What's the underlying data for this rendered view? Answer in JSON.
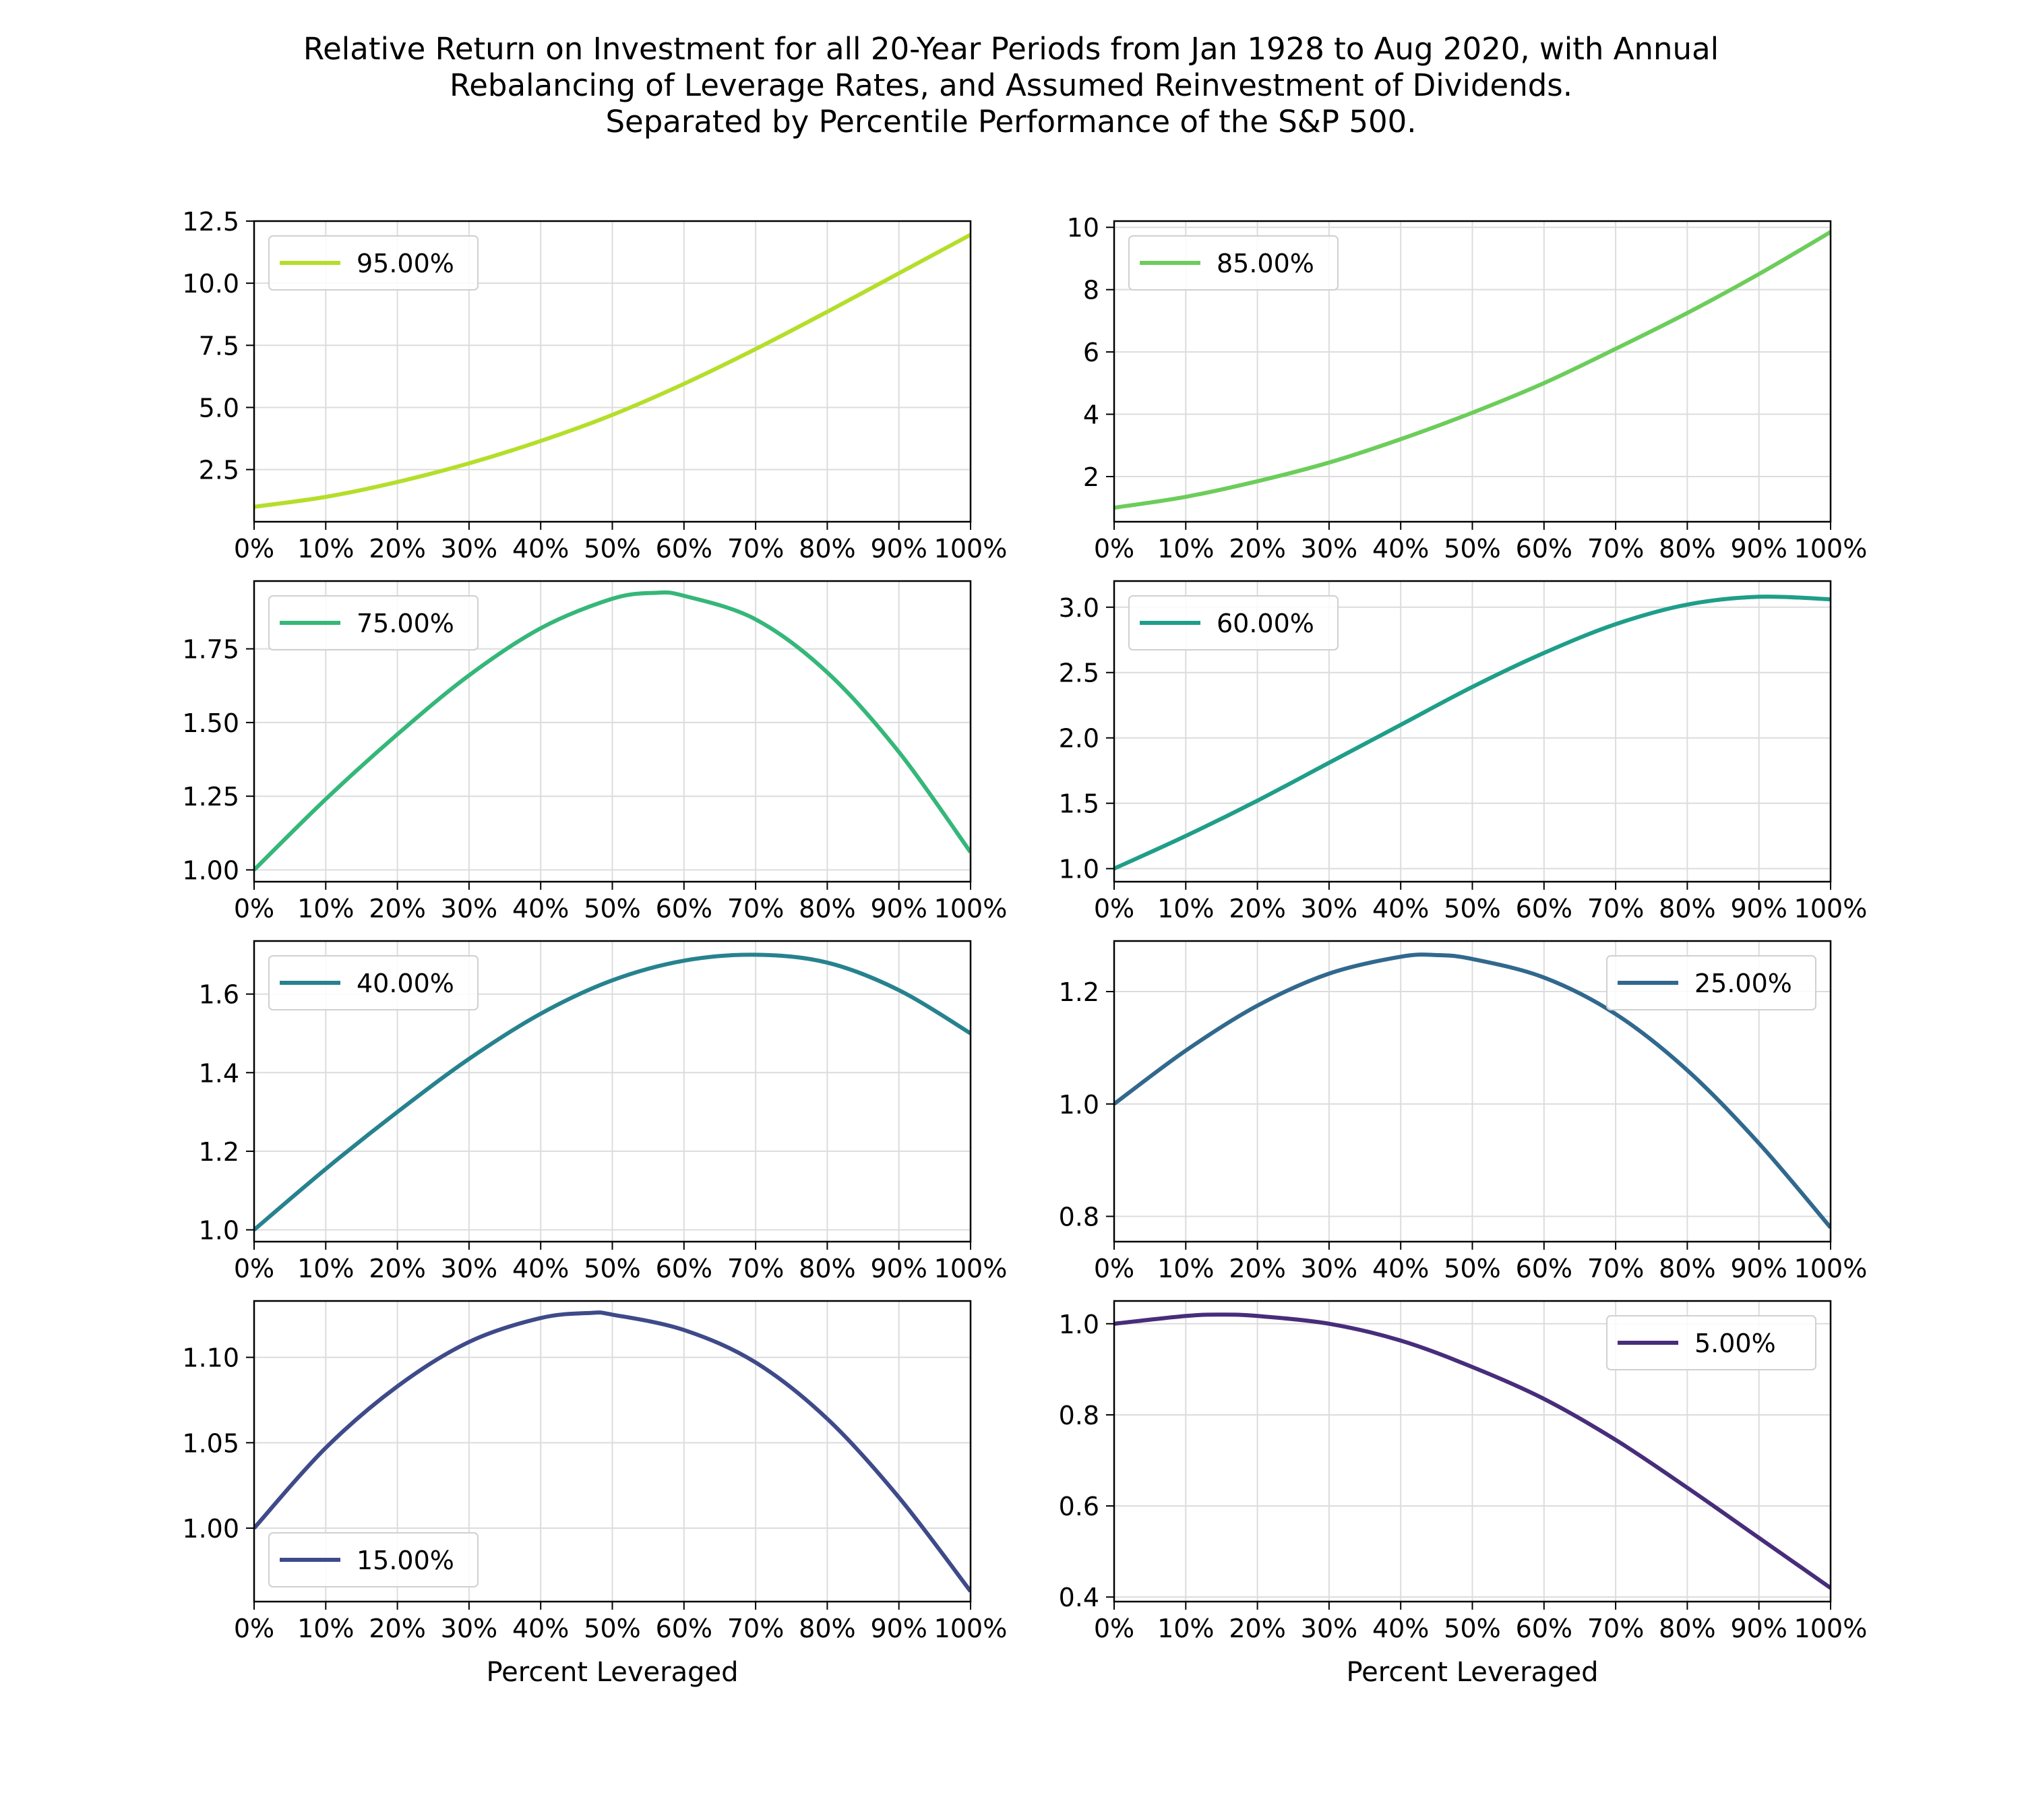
{
  "figure": {
    "title_lines": [
      "Relative Return on Investment for all 20-Year Periods from Jan 1928 to Aug 2020, with Annual",
      "Rebalancing of Leverage Rates, and Assumed Reinvestment of Dividends.",
      "Separated by Percentile Performance of the S&P 500."
    ]
  },
  "chart_data": [
    {
      "type": "line",
      "legend_label": "95.00%",
      "legend_position": "upper-left",
      "color": "#b5de2b",
      "x": [
        0,
        10,
        20,
        30,
        40,
        50,
        60,
        70,
        80,
        90,
        100
      ],
      "y": [
        1.0,
        1.4,
        2.0,
        2.75,
        3.65,
        4.7,
        5.95,
        7.35,
        8.85,
        10.4,
        11.95
      ],
      "xlim": [
        0,
        100
      ],
      "ylim": [
        0.4,
        12.5
      ],
      "yticks": [
        2.5,
        5.0,
        7.5,
        10.0,
        12.5
      ],
      "ytick_labels": [
        "2.5",
        "5.0",
        "7.5",
        "10.0",
        "12.5"
      ],
      "xticks": [
        0,
        10,
        20,
        30,
        40,
        50,
        60,
        70,
        80,
        90,
        100
      ],
      "xtick_labels": [
        "0%",
        "10%",
        "20%",
        "30%",
        "40%",
        "50%",
        "60%",
        "70%",
        "80%",
        "90%",
        "100%"
      ],
      "xlabel": "",
      "grid": true
    },
    {
      "type": "line",
      "legend_label": "85.00%",
      "legend_position": "upper-left",
      "color": "#6ccd5a",
      "x": [
        0,
        10,
        20,
        30,
        40,
        50,
        60,
        70,
        80,
        90,
        100
      ],
      "y": [
        1.0,
        1.35,
        1.85,
        2.45,
        3.2,
        4.05,
        5.0,
        6.1,
        7.25,
        8.5,
        9.85
      ],
      "xlim": [
        0,
        100
      ],
      "ylim": [
        0.55,
        10.2
      ],
      "yticks": [
        2,
        4,
        6,
        8,
        10
      ],
      "ytick_labels": [
        "2",
        "4",
        "6",
        "8",
        "10"
      ],
      "xticks": [
        0,
        10,
        20,
        30,
        40,
        50,
        60,
        70,
        80,
        90,
        100
      ],
      "xtick_labels": [
        "0%",
        "10%",
        "20%",
        "30%",
        "40%",
        "50%",
        "60%",
        "70%",
        "80%",
        "90%",
        "100%"
      ],
      "xlabel": "",
      "grid": true
    },
    {
      "type": "line",
      "legend_label": "75.00%",
      "legend_position": "upper-left",
      "color": "#35b779",
      "x": [
        0,
        10,
        20,
        30,
        40,
        50,
        56,
        60,
        70,
        80,
        90,
        100
      ],
      "y": [
        1.0,
        1.24,
        1.46,
        1.66,
        1.82,
        1.92,
        1.94,
        1.93,
        1.85,
        1.67,
        1.4,
        1.06
      ],
      "xlim": [
        0,
        100
      ],
      "ylim": [
        0.96,
        1.98
      ],
      "yticks": [
        1.0,
        1.25,
        1.5,
        1.75
      ],
      "ytick_labels": [
        "1.00",
        "1.25",
        "1.50",
        "1.75"
      ],
      "xticks": [
        0,
        10,
        20,
        30,
        40,
        50,
        60,
        70,
        80,
        90,
        100
      ],
      "xtick_labels": [
        "0%",
        "10%",
        "20%",
        "30%",
        "40%",
        "50%",
        "60%",
        "70%",
        "80%",
        "90%",
        "100%"
      ],
      "xlabel": "",
      "grid": true
    },
    {
      "type": "line",
      "legend_label": "60.00%",
      "legend_position": "upper-left",
      "color": "#1f9e89",
      "x": [
        0,
        10,
        20,
        30,
        40,
        50,
        60,
        70,
        80,
        90,
        100
      ],
      "y": [
        1.0,
        1.25,
        1.52,
        1.81,
        2.1,
        2.39,
        2.65,
        2.87,
        3.02,
        3.08,
        3.06
      ],
      "xlim": [
        0,
        100
      ],
      "ylim": [
        0.9,
        3.2
      ],
      "yticks": [
        1.0,
        1.5,
        2.0,
        2.5,
        3.0
      ],
      "ytick_labels": [
        "1.0",
        "1.5",
        "2.0",
        "2.5",
        "3.0"
      ],
      "xticks": [
        0,
        10,
        20,
        30,
        40,
        50,
        60,
        70,
        80,
        90,
        100
      ],
      "xtick_labels": [
        "0%",
        "10%",
        "20%",
        "30%",
        "40%",
        "50%",
        "60%",
        "70%",
        "80%",
        "90%",
        "100%"
      ],
      "xlabel": "",
      "grid": true
    },
    {
      "type": "line",
      "legend_label": "40.00%",
      "legend_position": "upper-left",
      "color": "#26828e",
      "x": [
        0,
        10,
        20,
        30,
        40,
        50,
        60,
        70,
        80,
        90,
        100
      ],
      "y": [
        1.0,
        1.155,
        1.3,
        1.435,
        1.55,
        1.635,
        1.685,
        1.7,
        1.68,
        1.61,
        1.5
      ],
      "xlim": [
        0,
        100
      ],
      "ylim": [
        0.97,
        1.735
      ],
      "yticks": [
        1.0,
        1.2,
        1.4,
        1.6
      ],
      "ytick_labels": [
        "1.0",
        "1.2",
        "1.4",
        "1.6"
      ],
      "xticks": [
        0,
        10,
        20,
        30,
        40,
        50,
        60,
        70,
        80,
        90,
        100
      ],
      "xtick_labels": [
        "0%",
        "10%",
        "20%",
        "30%",
        "40%",
        "50%",
        "60%",
        "70%",
        "80%",
        "90%",
        "100%"
      ],
      "xlabel": "",
      "grid": true
    },
    {
      "type": "line",
      "legend_label": "25.00%",
      "legend_position": "upper-right",
      "color": "#31688e",
      "x": [
        0,
        10,
        20,
        30,
        40,
        45,
        50,
        60,
        70,
        80,
        90,
        100
      ],
      "y": [
        1.0,
        1.095,
        1.175,
        1.232,
        1.262,
        1.265,
        1.258,
        1.225,
        1.16,
        1.06,
        0.93,
        0.78
      ],
      "xlim": [
        0,
        100
      ],
      "ylim": [
        0.755,
        1.29
      ],
      "yticks": [
        0.8,
        1.0,
        1.2
      ],
      "ytick_labels": [
        "0.8",
        "1.0",
        "1.2"
      ],
      "xticks": [
        0,
        10,
        20,
        30,
        40,
        50,
        60,
        70,
        80,
        90,
        100
      ],
      "xtick_labels": [
        "0%",
        "10%",
        "20%",
        "30%",
        "40%",
        "50%",
        "60%",
        "70%",
        "80%",
        "90%",
        "100%"
      ],
      "xlabel": "",
      "grid": true
    },
    {
      "type": "line",
      "legend_label": "15.00%",
      "legend_position": "lower-left",
      "color": "#3e4a89",
      "x": [
        0,
        10,
        20,
        30,
        40,
        47,
        50,
        60,
        70,
        80,
        90,
        100
      ],
      "y": [
        1.0,
        1.047,
        1.083,
        1.109,
        1.123,
        1.126,
        1.125,
        1.116,
        1.097,
        1.064,
        1.018,
        0.963
      ],
      "xlim": [
        0,
        100
      ],
      "ylim": [
        0.957,
        1.133
      ],
      "yticks": [
        1.0,
        1.05,
        1.1
      ],
      "ytick_labels": [
        "1.00",
        "1.05",
        "1.10"
      ],
      "xticks": [
        0,
        10,
        20,
        30,
        40,
        50,
        60,
        70,
        80,
        90,
        100
      ],
      "xtick_labels": [
        "0%",
        "10%",
        "20%",
        "30%",
        "40%",
        "50%",
        "60%",
        "70%",
        "80%",
        "90%",
        "100%"
      ],
      "xlabel": "Percent Leveraged",
      "grid": true
    },
    {
      "type": "line",
      "legend_label": "5.00%",
      "legend_position": "upper-right",
      "color": "#472d7b",
      "x": [
        0,
        10,
        15,
        20,
        30,
        40,
        50,
        60,
        70,
        80,
        90,
        100
      ],
      "y": [
        1.0,
        1.017,
        1.02,
        1.017,
        1.0,
        0.963,
        0.905,
        0.835,
        0.745,
        0.64,
        0.53,
        0.42
      ],
      "xlim": [
        0,
        100
      ],
      "ylim": [
        0.39,
        1.05
      ],
      "yticks": [
        0.4,
        0.6,
        0.8,
        1.0
      ],
      "ytick_labels": [
        "0.4",
        "0.6",
        "0.8",
        "1.0"
      ],
      "xticks": [
        0,
        10,
        20,
        30,
        40,
        50,
        60,
        70,
        80,
        90,
        100
      ],
      "xtick_labels": [
        "0%",
        "10%",
        "20%",
        "30%",
        "40%",
        "50%",
        "60%",
        "70%",
        "80%",
        "90%",
        "100%"
      ],
      "xlabel": "Percent Leveraged",
      "grid": true
    }
  ]
}
